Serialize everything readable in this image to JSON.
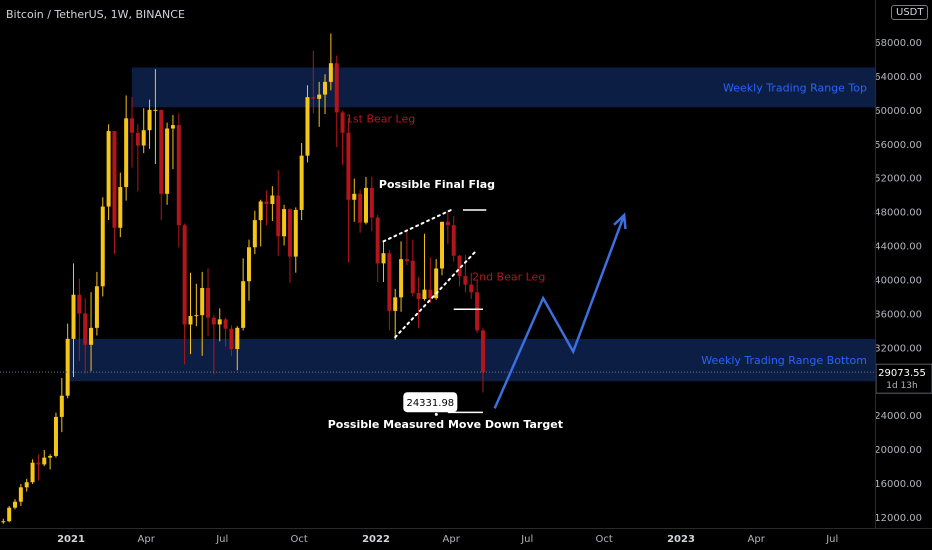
{
  "header": {
    "symbol_title": "Bitcoin / TetherUS, 1W, BINANCE",
    "currency_badge": "USDT"
  },
  "colors": {
    "background": "#000000",
    "bull": "#f5c518",
    "bear": "#b3151d",
    "zone": "#0c1e44",
    "zone_text": "#2962ff",
    "annotation": "#ffffff",
    "arrow": "#3c6fe0",
    "bear_leg_text": "#b3151d"
  },
  "chart_data": {
    "type": "candlestick",
    "title": "Bitcoin / TetherUS, 1W, BINANCE",
    "ylim": [
      11000,
      73000
    ],
    "y_ticks": [
      12000,
      16000,
      20000,
      24000,
      28000,
      32000,
      36000,
      40000,
      44000,
      48000,
      52000,
      56000,
      60000,
      64000,
      68000
    ],
    "y_tick_labels": [
      "12000.00",
      "16000.00",
      "20000.00",
      "24000.00",
      "28000.00",
      "32000.00",
      "36000.00",
      "40000.00",
      "44000.00",
      "48000.00",
      "52000.00",
      "56000.00",
      "60000.00",
      "64000.00",
      "68000.00"
    ],
    "x_ticks": [
      {
        "label": "2021",
        "date": "2021-01-01"
      },
      {
        "label": "Apr",
        "date": "2021-04-01"
      },
      {
        "label": "Jul",
        "date": "2021-07-01"
      },
      {
        "label": "Oct",
        "date": "2021-10-01"
      },
      {
        "label": "2022",
        "date": "2022-01-01"
      },
      {
        "label": "Apr",
        "date": "2022-04-01"
      },
      {
        "label": "Jul",
        "date": "2022-07-01"
      },
      {
        "label": "Oct",
        "date": "2022-10-01"
      },
      {
        "label": "2023",
        "date": "2023-01-01"
      },
      {
        "label": "Apr",
        "date": "2023-04-01"
      },
      {
        "label": "Jul",
        "date": "2023-07-01"
      }
    ],
    "last_price": {
      "label": "29073.55",
      "value": 29073.55,
      "countdown": "1d 13h"
    },
    "candles": [
      {
        "date": "2020-10-05",
        "o": 10700,
        "h": 11700,
        "l": 10500,
        "c": 11400
      },
      {
        "date": "2020-10-12",
        "o": 11400,
        "h": 11800,
        "l": 11200,
        "c": 11500
      },
      {
        "date": "2020-10-19",
        "o": 11500,
        "h": 13300,
        "l": 11400,
        "c": 13100
      },
      {
        "date": "2020-10-26",
        "o": 13100,
        "h": 14100,
        "l": 12900,
        "c": 13800
      },
      {
        "date": "2020-11-02",
        "o": 13800,
        "h": 15900,
        "l": 13300,
        "c": 15500
      },
      {
        "date": "2020-11-09",
        "o": 15500,
        "h": 16500,
        "l": 15000,
        "c": 16100
      },
      {
        "date": "2020-11-16",
        "o": 16100,
        "h": 18800,
        "l": 15900,
        "c": 18400
      },
      {
        "date": "2020-11-23",
        "o": 18400,
        "h": 19400,
        "l": 16300,
        "c": 18200
      },
      {
        "date": "2020-11-30",
        "o": 18200,
        "h": 19900,
        "l": 18000,
        "c": 19000
      },
      {
        "date": "2020-12-07",
        "o": 19000,
        "h": 19400,
        "l": 17600,
        "c": 19200
      },
      {
        "date": "2020-12-14",
        "o": 19200,
        "h": 24300,
        "l": 19000,
        "c": 23800
      },
      {
        "date": "2020-12-21",
        "o": 23800,
        "h": 28400,
        "l": 22000,
        "c": 26300
      },
      {
        "date": "2020-12-28",
        "o": 26300,
        "h": 34800,
        "l": 26000,
        "c": 33000
      },
      {
        "date": "2021-01-04",
        "o": 33000,
        "h": 41900,
        "l": 28500,
        "c": 38200
      },
      {
        "date": "2021-01-11",
        "o": 38200,
        "h": 40100,
        "l": 30400,
        "c": 36000
      },
      {
        "date": "2021-01-18",
        "o": 36000,
        "h": 37800,
        "l": 28900,
        "c": 32300
      },
      {
        "date": "2021-01-25",
        "o": 32300,
        "h": 38500,
        "l": 29200,
        "c": 34300
      },
      {
        "date": "2021-02-01",
        "o": 34300,
        "h": 40900,
        "l": 33400,
        "c": 39200
      },
      {
        "date": "2021-02-08",
        "o": 39200,
        "h": 49700,
        "l": 38000,
        "c": 48600
      },
      {
        "date": "2021-02-15",
        "o": 48600,
        "h": 58300,
        "l": 47000,
        "c": 57500
      },
      {
        "date": "2021-02-22",
        "o": 57500,
        "h": 57500,
        "l": 43000,
        "c": 46100
      },
      {
        "date": "2021-03-01",
        "o": 46100,
        "h": 52600,
        "l": 45000,
        "c": 50900
      },
      {
        "date": "2021-03-08",
        "o": 50900,
        "h": 61700,
        "l": 49300,
        "c": 59000
      },
      {
        "date": "2021-03-15",
        "o": 59000,
        "h": 61500,
        "l": 53200,
        "c": 57300
      },
      {
        "date": "2021-03-22",
        "o": 57300,
        "h": 58300,
        "l": 50400,
        "c": 55800
      },
      {
        "date": "2021-03-29",
        "o": 55800,
        "h": 60200,
        "l": 54900,
        "c": 57600
      },
      {
        "date": "2021-04-05",
        "o": 57600,
        "h": 61200,
        "l": 55400,
        "c": 60000
      },
      {
        "date": "2021-04-12",
        "o": 60000,
        "h": 64800,
        "l": 53600,
        "c": 60000
      },
      {
        "date": "2021-04-19",
        "o": 60000,
        "h": 60000,
        "l": 47000,
        "c": 50100
      },
      {
        "date": "2021-04-26",
        "o": 50100,
        "h": 58500,
        "l": 48800,
        "c": 57800
      },
      {
        "date": "2021-05-03",
        "o": 57800,
        "h": 59400,
        "l": 53000,
        "c": 58200
      },
      {
        "date": "2021-05-10",
        "o": 58200,
        "h": 59600,
        "l": 43800,
        "c": 46400
      },
      {
        "date": "2021-05-17",
        "o": 46400,
        "h": 46600,
        "l": 30000,
        "c": 34700
      },
      {
        "date": "2021-05-24",
        "o": 34700,
        "h": 40800,
        "l": 31200,
        "c": 35700
      },
      {
        "date": "2021-05-31",
        "o": 35700,
        "h": 39500,
        "l": 34500,
        "c": 35800
      },
      {
        "date": "2021-06-07",
        "o": 35800,
        "h": 40900,
        "l": 31000,
        "c": 39000
      },
      {
        "date": "2021-06-14",
        "o": 39000,
        "h": 41300,
        "l": 33300,
        "c": 35500
      },
      {
        "date": "2021-06-21",
        "o": 35500,
        "h": 35800,
        "l": 28800,
        "c": 34700
      },
      {
        "date": "2021-06-28",
        "o": 34700,
        "h": 36600,
        "l": 32700,
        "c": 35300
      },
      {
        "date": "2021-07-05",
        "o": 35300,
        "h": 35500,
        "l": 32100,
        "c": 34200
      },
      {
        "date": "2021-07-12",
        "o": 34200,
        "h": 34600,
        "l": 31000,
        "c": 31800
      },
      {
        "date": "2021-07-19",
        "o": 31800,
        "h": 34500,
        "l": 29300,
        "c": 34300
      },
      {
        "date": "2021-07-26",
        "o": 34300,
        "h": 42500,
        "l": 34000,
        "c": 39800
      },
      {
        "date": "2021-08-02",
        "o": 39800,
        "h": 44700,
        "l": 37500,
        "c": 43800
      },
      {
        "date": "2021-08-09",
        "o": 43800,
        "h": 48100,
        "l": 43000,
        "c": 47000
      },
      {
        "date": "2021-08-16",
        "o": 47000,
        "h": 49400,
        "l": 43900,
        "c": 49200
      },
      {
        "date": "2021-08-23",
        "o": 49200,
        "h": 50500,
        "l": 46400,
        "c": 48900
      },
      {
        "date": "2021-08-30",
        "o": 48900,
        "h": 51000,
        "l": 46900,
        "c": 49900
      },
      {
        "date": "2021-09-06",
        "o": 49900,
        "h": 52900,
        "l": 42800,
        "c": 45100
      },
      {
        "date": "2021-09-13",
        "o": 45100,
        "h": 48800,
        "l": 44000,
        "c": 48300
      },
      {
        "date": "2021-09-20",
        "o": 48300,
        "h": 48400,
        "l": 39600,
        "c": 42700
      },
      {
        "date": "2021-09-27",
        "o": 42700,
        "h": 48500,
        "l": 40800,
        "c": 48200
      },
      {
        "date": "2021-10-04",
        "o": 48200,
        "h": 56100,
        "l": 47000,
        "c": 54600
      },
      {
        "date": "2021-10-11",
        "o": 54600,
        "h": 62900,
        "l": 53800,
        "c": 61500
      },
      {
        "date": "2021-10-18",
        "o": 61500,
        "h": 67000,
        "l": 59600,
        "c": 61300
      },
      {
        "date": "2021-10-25",
        "o": 61300,
        "h": 63300,
        "l": 58000,
        "c": 61800
      },
      {
        "date": "2021-11-01",
        "o": 61800,
        "h": 64200,
        "l": 59500,
        "c": 63300
      },
      {
        "date": "2021-11-08",
        "o": 63300,
        "h": 69000,
        "l": 62300,
        "c": 65500
      },
      {
        "date": "2021-11-15",
        "o": 65500,
        "h": 66400,
        "l": 55600,
        "c": 59700
      },
      {
        "date": "2021-11-22",
        "o": 59700,
        "h": 59900,
        "l": 53500,
        "c": 57300
      },
      {
        "date": "2021-11-29",
        "o": 57300,
        "h": 59100,
        "l": 42000,
        "c": 49400
      },
      {
        "date": "2021-12-06",
        "o": 49400,
        "h": 51900,
        "l": 46800,
        "c": 50100
      },
      {
        "date": "2021-12-13",
        "o": 50100,
        "h": 50600,
        "l": 45500,
        "c": 46700
      },
      {
        "date": "2021-12-20",
        "o": 46700,
        "h": 52100,
        "l": 46500,
        "c": 50800
      },
      {
        "date": "2021-12-27",
        "o": 50800,
        "h": 52100,
        "l": 45700,
        "c": 47300
      },
      {
        "date": "2022-01-03",
        "o": 47300,
        "h": 47600,
        "l": 39700,
        "c": 41900
      },
      {
        "date": "2022-01-10",
        "o": 41900,
        "h": 44500,
        "l": 39700,
        "c": 43100
      },
      {
        "date": "2022-01-17",
        "o": 43100,
        "h": 43500,
        "l": 34000,
        "c": 36300
      },
      {
        "date": "2022-01-24",
        "o": 36300,
        "h": 38900,
        "l": 32900,
        "c": 37900
      },
      {
        "date": "2022-01-31",
        "o": 37900,
        "h": 44500,
        "l": 36200,
        "c": 42400
      },
      {
        "date": "2022-02-07",
        "o": 42400,
        "h": 45800,
        "l": 41700,
        "c": 42200
      },
      {
        "date": "2022-02-14",
        "o": 42200,
        "h": 44700,
        "l": 38000,
        "c": 38400
      },
      {
        "date": "2022-02-21",
        "o": 38400,
        "h": 40300,
        "l": 34300,
        "c": 37700
      },
      {
        "date": "2022-02-28",
        "o": 37700,
        "h": 45400,
        "l": 37500,
        "c": 38800
      },
      {
        "date": "2022-03-07",
        "o": 38800,
        "h": 42600,
        "l": 37200,
        "c": 37800
      },
      {
        "date": "2022-03-14",
        "o": 37800,
        "h": 42400,
        "l": 37600,
        "c": 41300
      },
      {
        "date": "2022-03-21",
        "o": 41300,
        "h": 46800,
        "l": 40500,
        "c": 46800
      },
      {
        "date": "2022-03-28",
        "o": 46800,
        "h": 48200,
        "l": 44200,
        "c": 46400
      },
      {
        "date": "2022-04-04",
        "o": 46400,
        "h": 47500,
        "l": 42100,
        "c": 42800
      },
      {
        "date": "2022-04-11",
        "o": 42800,
        "h": 42900,
        "l": 39200,
        "c": 40400
      },
      {
        "date": "2022-04-18",
        "o": 40400,
        "h": 42900,
        "l": 38500,
        "c": 39400
      },
      {
        "date": "2022-04-25",
        "o": 39400,
        "h": 40800,
        "l": 37700,
        "c": 38500
      },
      {
        "date": "2022-05-02",
        "o": 38500,
        "h": 40000,
        "l": 33700,
        "c": 34000
      },
      {
        "date": "2022-05-09",
        "o": 34000,
        "h": 34300,
        "l": 26700,
        "c": 29073.55
      }
    ],
    "zones": [
      {
        "name": "top",
        "label": "Weekly Trading Range Top",
        "from": 60300,
        "to": 65000,
        "start": "2021-03-15"
      },
      {
        "name": "bottom",
        "label": "Weekly Trading Range Bottom",
        "from": 28000,
        "to": 33000,
        "start": "2020-12-28"
      }
    ],
    "annotations": {
      "bear_leg_1": {
        "text": "1st Bear Leg",
        "date": "2021-11-26",
        "price": 58500
      },
      "bear_leg_2": {
        "text": "2nd Bear Leg",
        "date": "2022-04-26",
        "price": 39900
      },
      "final_flag": {
        "text": "Possible Final Flag",
        "date": "2022-03-15",
        "price": 50800
      },
      "target_label": {
        "text": "Possible Measured Move Down Target",
        "date": "2022-03-25",
        "price": 22500
      },
      "target_price": {
        "text": "24331.98",
        "value": 24331.98,
        "date": "2022-03-07"
      },
      "flag_upper_line": {
        "from": {
          "date": "2022-01-10",
          "price": 44500
        },
        "to": {
          "date": "2022-04-01",
          "price": 48200
        }
      },
      "flag_lower_line": {
        "from": {
          "date": "2022-01-24",
          "price": 33200
        },
        "to": {
          "date": "2022-05-01",
          "price": 43400
        }
      },
      "flag_top_tick": {
        "from": "2022-04-15",
        "to": "2022-05-13",
        "price": 48200
      },
      "flag_mid_tick": {
        "from": "2022-04-04",
        "to": "2022-05-09",
        "price": 36500
      },
      "target_tick": {
        "from": "2022-03-28",
        "to": "2022-05-09",
        "price": 24331.98
      },
      "projection": [
        {
          "date": "2022-05-23",
          "price": 24800
        },
        {
          "date": "2022-07-20",
          "price": 37800
        },
        {
          "date": "2022-08-25",
          "price": 31500
        },
        {
          "date": "2022-10-25",
          "price": 47600
        }
      ]
    }
  }
}
